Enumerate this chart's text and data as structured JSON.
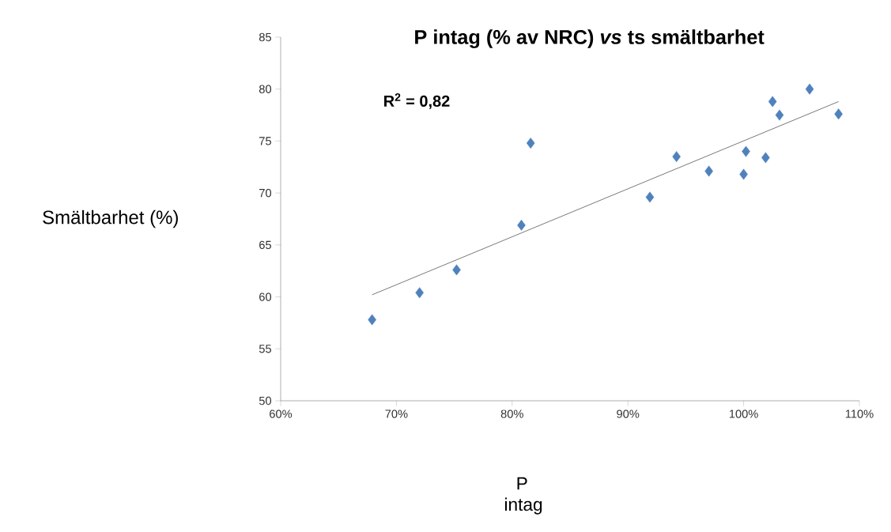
{
  "chart_data": {
    "type": "scatter",
    "title": "P intag  (% av NRC) *vs*  ts smältbarhet",
    "xlabel": "P intag",
    "ylabel": "Smältbarhet (%)",
    "annotations": [
      "R$^{2}$ = 0,82"
    ],
    "x": [
      67.9,
      72.0,
      75.2,
      80.8,
      81.6,
      91.9,
      94.2,
      97.0,
      100.0,
      100.2,
      101.9,
      102.5,
      103.1,
      105.7,
      108.2
    ],
    "series": [
      {
        "color": "#4f81bd",
        "marker": "diamond",
        "values": [
          57.8,
          60.4,
          62.6,
          66.9,
          74.8,
          69.6,
          73.5,
          72.1,
          71.8,
          74.0,
          73.4,
          78.8,
          77.5,
          80.0,
          77.6
        ]
      },
      {
        "type": "line",
        "color": "#000000",
        "marker": "none",
        "x": [
          67.9,
          108.2
        ],
        "values": [
          60.2,
          78.8
        ]
      }
    ],
    "xlim": [
      60,
      110
    ],
    "ylim": [
      50,
      85
    ],
    "xticks": [
      {
        "value": 60,
        "label": "60%"
      },
      {
        "value": 70,
        "label": "70%"
      },
      {
        "value": 80,
        "label": "80%"
      },
      {
        "value": 90,
        "label": "90%"
      },
      {
        "value": 100,
        "label": "100%"
      },
      {
        "value": 110,
        "label": "110%"
      }
    ],
    "yticks": [
      50,
      55,
      60,
      65,
      70,
      75,
      80,
      85
    ],
    "grid": false
  }
}
